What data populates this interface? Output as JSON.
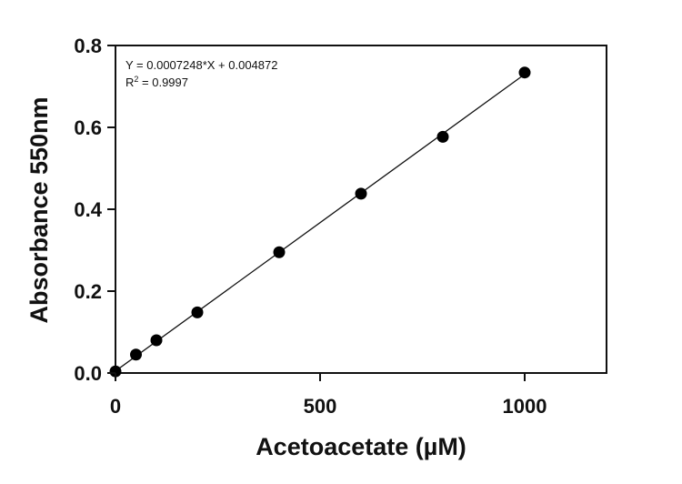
{
  "chart_data": {
    "type": "scatter",
    "xlabel": "Acetoacetate (µM)",
    "ylabel": "Absorbance 550nm",
    "xlim": [
      0,
      1200
    ],
    "ylim": [
      0,
      0.8
    ],
    "x_ticks": [
      0,
      500,
      1000
    ],
    "x_tick_labels": [
      "0",
      "500",
      "1000"
    ],
    "y_ticks": [
      0,
      0.2,
      0.4,
      0.6,
      0.8
    ],
    "y_tick_labels": [
      "0.0",
      "0.2",
      "0.4",
      "0.6",
      "0.8"
    ],
    "grid": false,
    "series": [
      {
        "x": [
          0,
          50,
          100,
          200,
          400,
          600,
          800,
          1000
        ],
        "y": [
          0.004,
          0.045,
          0.08,
          0.148,
          0.295,
          0.438,
          0.577,
          0.734
        ]
      }
    ],
    "fit_line": {
      "slope": 0.0007248,
      "intercept": 0.004872,
      "x_range": [
        0,
        1000
      ]
    },
    "annotations": {
      "equation": "Y = 0.0007248*X + 0.004872",
      "r2_prefix": "R",
      "r2_sup": "2",
      "r2_value": " = 0.9997"
    }
  }
}
